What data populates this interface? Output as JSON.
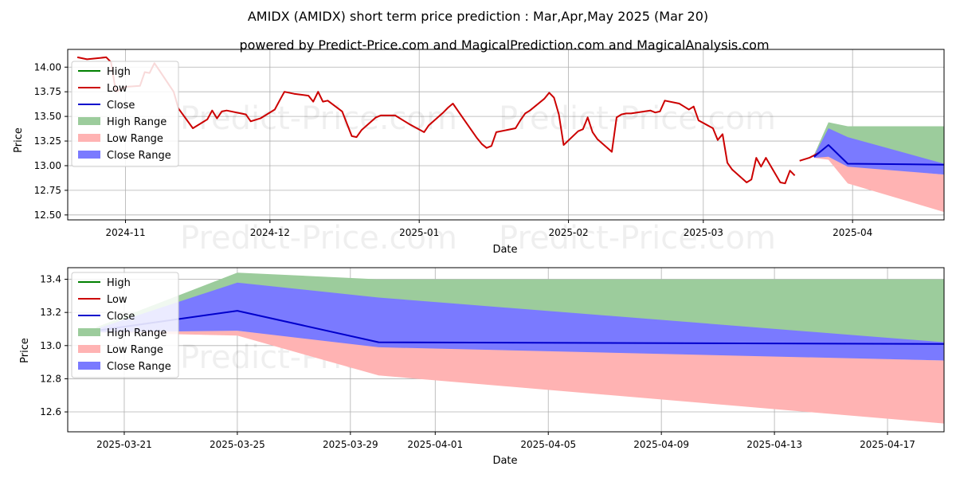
{
  "title_line1": "AMIDX (AMIDX) short term price prediction : Mar,Apr,May 2025 (Mar 20)",
  "title_line2": "powered by Predict-Price.com and MagicalPrediction.com and MagicalAnalysis.com",
  "watermark": "Predict-Price.com",
  "colors": {
    "high": "#008000",
    "low": "#cc0000",
    "close": "#0000cc",
    "high_range": "#9ccc9c",
    "low_range": "#ffb3b3",
    "close_range": "#7a7aff"
  },
  "chart_data": [
    {
      "type": "line",
      "xlabel": "Date",
      "ylabel": "Price",
      "ylim": [
        12.45,
        14.18
      ],
      "xlim": [
        "2024-10-20",
        "2025-04-20"
      ],
      "yticks": [
        "12.50",
        "12.75",
        "13.00",
        "13.25",
        "13.50",
        "13.75",
        "14.00"
      ],
      "yticks_values": [
        12.5,
        12.75,
        13.0,
        13.25,
        13.5,
        13.75,
        14.0
      ],
      "xticks": [
        "2024-11",
        "2024-12",
        "2025-01",
        "2025-02",
        "2025-03",
        "2025-04"
      ],
      "xticks_values": [
        "2024-11-01",
        "2024-12-01",
        "2025-01-01",
        "2025-02-01",
        "2025-03-01",
        "2025-04-01"
      ],
      "grid": true,
      "legend": "top-left",
      "legend_entries": [
        "High",
        "Low",
        "Close",
        "High Range",
        "Low Range",
        "Close Range"
      ],
      "history": {
        "name": "Low",
        "x": [
          "2024-10-22",
          "2024-10-24",
          "2024-10-28",
          "2024-10-29",
          "2024-10-30",
          "2024-11-01",
          "2024-11-04",
          "2024-11-05",
          "2024-11-06",
          "2024-11-07",
          "2024-11-08",
          "2024-11-11",
          "2024-11-12",
          "2024-11-15",
          "2024-11-18",
          "2024-11-19",
          "2024-11-20",
          "2024-11-21",
          "2024-11-22",
          "2024-11-26",
          "2024-11-27",
          "2024-11-29",
          "2024-12-02",
          "2024-12-03",
          "2024-12-04",
          "2024-12-06",
          "2024-12-09",
          "2024-12-10",
          "2024-12-11",
          "2024-12-12",
          "2024-12-13",
          "2024-12-16",
          "2024-12-18",
          "2024-12-19",
          "2024-12-20",
          "2024-12-23",
          "2024-12-24",
          "2024-12-27",
          "2024-12-30",
          "2025-01-02",
          "2025-01-03",
          "2025-01-06",
          "2025-01-07",
          "2025-01-08",
          "2025-01-10",
          "2025-01-13",
          "2025-01-14",
          "2025-01-15",
          "2025-01-16",
          "2025-01-17",
          "2025-01-21",
          "2025-01-22",
          "2025-01-23",
          "2025-01-24",
          "2025-01-27",
          "2025-01-28",
          "2025-01-29",
          "2025-01-30",
          "2025-01-31",
          "2025-02-03",
          "2025-02-04",
          "2025-02-05",
          "2025-02-06",
          "2025-02-07",
          "2025-02-10",
          "2025-02-11",
          "2025-02-12",
          "2025-02-13",
          "2025-02-14",
          "2025-02-18",
          "2025-02-19",
          "2025-02-20",
          "2025-02-21",
          "2025-02-24",
          "2025-02-25",
          "2025-02-26",
          "2025-02-27",
          "2025-02-28",
          "2025-03-03",
          "2025-03-04",
          "2025-03-05",
          "2025-03-06",
          "2025-03-07",
          "2025-03-10",
          "2025-03-11",
          "2025-03-12",
          "2025-03-13",
          "2025-03-14",
          "2025-03-17",
          "2025-03-18",
          "2025-03-19",
          "2025-03-20"
        ],
        "y": [
          14.1,
          14.08,
          14.1,
          14.05,
          13.75,
          13.8,
          13.81,
          13.95,
          13.94,
          14.04,
          13.97,
          13.75,
          13.58,
          13.38,
          13.47,
          13.56,
          13.48,
          13.55,
          13.56,
          13.52,
          13.45,
          13.48,
          13.57,
          13.66,
          13.75,
          13.73,
          13.71,
          13.65,
          13.75,
          13.65,
          13.66,
          13.55,
          13.3,
          13.29,
          13.36,
          13.49,
          13.51,
          13.51,
          13.42,
          13.34,
          13.41,
          13.54,
          13.59,
          13.63,
          13.49,
          13.28,
          13.22,
          13.18,
          13.2,
          13.34,
          13.38,
          13.46,
          13.53,
          13.56,
          13.68,
          13.74,
          13.69,
          13.52,
          13.21,
          13.35,
          13.37,
          13.49,
          13.34,
          13.27,
          13.14,
          13.49,
          13.52,
          13.53,
          13.53,
          13.56,
          13.54,
          13.55,
          13.66,
          13.63,
          13.6,
          13.57,
          13.6,
          13.46,
          13.38,
          13.26,
          13.32,
          13.03,
          12.96,
          12.83,
          12.86,
          13.08,
          12.99,
          13.08,
          12.83,
          12.82,
          12.95,
          12.9
        ],
        "x_tail": [
          "2025-03-21",
          "2025-03-23",
          "2025-03-25"
        ],
        "y_tail": [
          13.05,
          13.08,
          13.13
        ]
      },
      "forecast_close": {
        "x": [
          "2025-03-24",
          "2025-03-27",
          "2025-03-31",
          "2025-04-20"
        ],
        "y": [
          13.09,
          13.21,
          13.02,
          13.01
        ]
      }
    },
    {
      "type": "area",
      "xlabel": "Date",
      "ylabel": "Price",
      "ylim": [
        12.48,
        13.47
      ],
      "xlim": [
        "2025-03-19",
        "2025-04-19"
      ],
      "yticks": [
        "12.6",
        "12.8",
        "13.0",
        "13.2",
        "13.4"
      ],
      "yticks_values": [
        12.6,
        12.8,
        13.0,
        13.2,
        13.4
      ],
      "xticks": [
        "2025-03-21",
        "2025-03-25",
        "2025-03-29",
        "2025-04-01",
        "2025-04-05",
        "2025-04-09",
        "2025-04-13",
        "2025-04-17"
      ],
      "xticks_values": [
        "2025-03-21",
        "2025-03-25",
        "2025-03-29",
        "2025-04-01",
        "2025-04-05",
        "2025-04-09",
        "2025-04-13",
        "2025-04-17"
      ],
      "grid": true,
      "legend": "top-left",
      "legend_entries": [
        "High",
        "Low",
        "Close",
        "High Range",
        "Low Range",
        "Close Range"
      ],
      "x": [
        "2025-03-20",
        "2025-03-25",
        "2025-03-30",
        "2025-04-19"
      ],
      "series": [
        {
          "name": "High Range",
          "upper": [
            13.11,
            13.44,
            13.4,
            13.4
          ],
          "lower": [
            13.09,
            13.09,
            13.01,
            13.01
          ]
        },
        {
          "name": "Low Range",
          "upper": [
            13.09,
            13.09,
            13.0,
            12.91
          ],
          "lower": [
            13.08,
            13.06,
            12.82,
            12.53
          ]
        },
        {
          "name": "Close Range",
          "upper": [
            13.1,
            13.38,
            13.29,
            13.02
          ],
          "lower": [
            13.08,
            13.09,
            12.99,
            12.91
          ]
        },
        {
          "name": "Close",
          "values": [
            13.09,
            13.21,
            13.02,
            13.01
          ]
        }
      ]
    }
  ]
}
